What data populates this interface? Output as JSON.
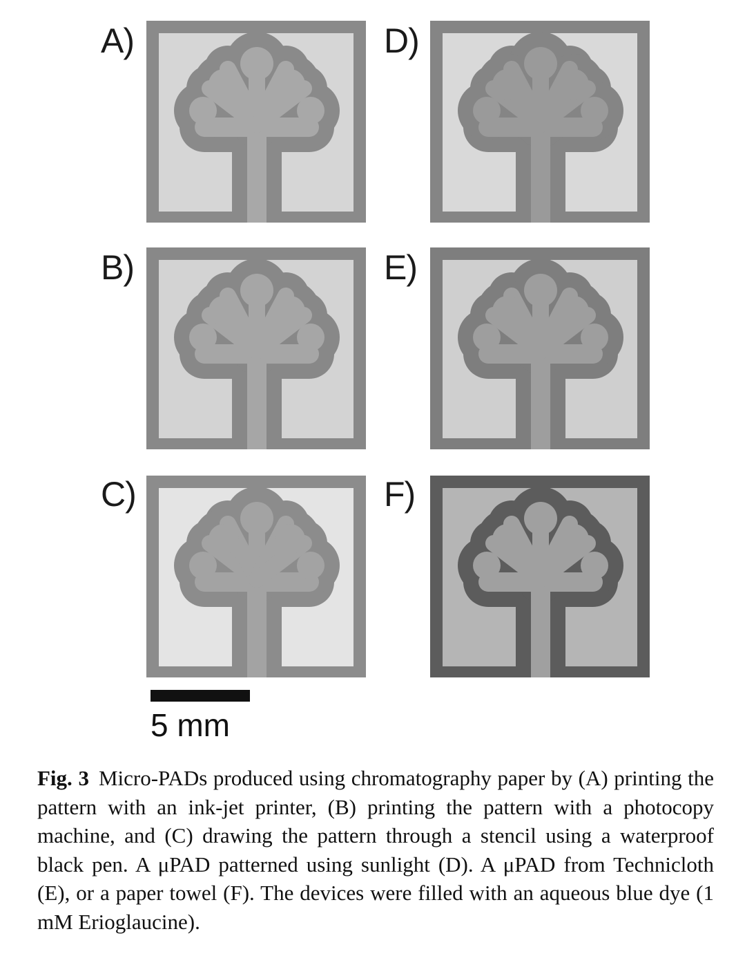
{
  "panels": [
    {
      "id": "A",
      "label": "A)",
      "border": "#8a8a8a",
      "field": "#d6d6d6",
      "channel": "#a8a8a8"
    },
    {
      "id": "D",
      "label": "D)",
      "border": "#858585",
      "field": "#d9d9d9",
      "channel": "#9a9a9a"
    },
    {
      "id": "B",
      "label": "B)",
      "border": "#888888",
      "field": "#d3d3d3",
      "channel": "#a6a6a6"
    },
    {
      "id": "E",
      "label": "E)",
      "border": "#7e7e7e",
      "field": "#cfcfcf",
      "channel": "#9e9e9e"
    },
    {
      "id": "C",
      "label": "C)",
      "border": "#8c8c8c",
      "field": "#e4e4e4",
      "channel": "#a3a3a3"
    },
    {
      "id": "F",
      "label": "F)",
      "border": "#5c5c5c",
      "field": "#b5b5b5",
      "channel": "#a0a0a0"
    }
  ],
  "scale_bar": {
    "label": "5 mm"
  },
  "caption": {
    "fig_label": "Fig. 3",
    "text": "Micro-PADs produced using chromatography paper by (A) printing the pattern with an ink-jet printer, (B) printing the pattern with a photocopy machine, and (C) drawing the pattern through a stencil using a waterproof black pen. A μPAD patterned using sunlight (D). A μPAD from Technicloth (E), or a paper towel (F). The devices were filled with an aqueous blue dye (1 mM Erioglaucine)."
  }
}
